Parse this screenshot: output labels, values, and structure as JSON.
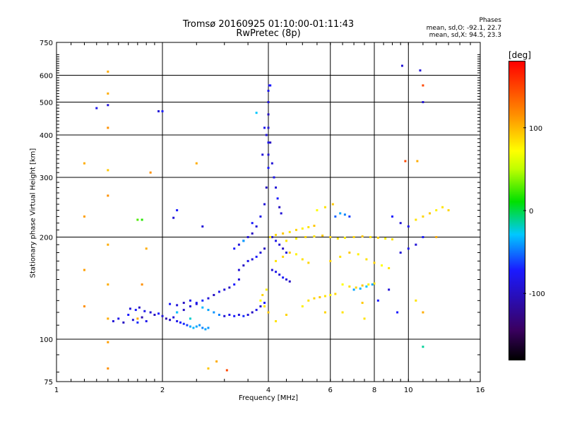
{
  "chart_data": {
    "type": "scatter",
    "title": "Tromsø 20160925 01:10:00-01:11:43",
    "subtitle": "RwPretec (8p)",
    "xlabel": "Frequency [MHz]",
    "ylabel": "Stationary phase Virtual Height [km]",
    "xscale": "log",
    "yscale": "log",
    "xlim": [
      1,
      16
    ],
    "ylim": [
      75,
      750
    ],
    "x_ticks": [
      1,
      2,
      4,
      6,
      8,
      10,
      16
    ],
    "y_ticks": [
      75,
      100,
      200,
      300,
      400,
      500,
      600,
      750
    ],
    "grid": true,
    "color_scale": {
      "unit": "[deg]",
      "range": [
        -180,
        180
      ],
      "ticks": [
        -100,
        0,
        100
      ]
    },
    "phases": {
      "heading": "Phases",
      "o_mode": "mean, sd,O: -92.1, 22.7",
      "x_mode": "mean, sd,X:  94.5, 23.3"
    },
    "points": [
      [
        1.45,
        113,
        -110
      ],
      [
        1.5,
        115,
        -105
      ],
      [
        1.55,
        112,
        -115
      ],
      [
        1.6,
        118,
        -100
      ],
      [
        1.65,
        114,
        -110
      ],
      [
        1.7,
        112,
        -95
      ],
      [
        1.75,
        116,
        -120
      ],
      [
        1.8,
        113,
        -105
      ],
      [
        1.62,
        123,
        -110
      ],
      [
        1.68,
        122,
        -100
      ],
      [
        1.72,
        124,
        -115
      ],
      [
        1.78,
        121,
        -105
      ],
      [
        1.85,
        120,
        -110
      ],
      [
        1.9,
        118,
        -115
      ],
      [
        1.95,
        119,
        -100
      ],
      [
        2.0,
        117,
        -110
      ],
      [
        2.05,
        115,
        -120
      ],
      [
        2.1,
        114,
        -115
      ],
      [
        2.15,
        116,
        -110
      ],
      [
        2.2,
        113,
        -105
      ],
      [
        2.25,
        112,
        -100
      ],
      [
        2.3,
        111,
        -95
      ],
      [
        2.35,
        110,
        -90
      ],
      [
        2.4,
        109,
        -60
      ],
      [
        2.45,
        108,
        -55
      ],
      [
        2.5,
        109,
        -60
      ],
      [
        2.55,
        110,
        -65
      ],
      [
        2.6,
        108,
        -70
      ],
      [
        2.65,
        107,
        -60
      ],
      [
        2.7,
        108,
        -65
      ],
      [
        2.2,
        120,
        -110
      ],
      [
        2.3,
        122,
        -115
      ],
      [
        2.4,
        125,
        -110
      ],
      [
        2.5,
        128,
        -100
      ],
      [
        2.6,
        130,
        -95
      ],
      [
        2.7,
        132,
        -110
      ],
      [
        2.8,
        135,
        -115
      ],
      [
        2.9,
        138,
        -105
      ],
      [
        3.0,
        140,
        -110
      ],
      [
        3.1,
        142,
        -115
      ],
      [
        3.2,
        145,
        -100
      ],
      [
        3.3,
        150,
        -110
      ],
      [
        2.1,
        127,
        -100
      ],
      [
        2.2,
        126,
        -110
      ],
      [
        2.3,
        128,
        -115
      ],
      [
        2.4,
        130,
        -105
      ],
      [
        2.5,
        127,
        -110
      ],
      [
        2.6,
        124,
        -55
      ],
      [
        2.7,
        122,
        -60
      ],
      [
        2.8,
        120,
        -65
      ],
      [
        2.9,
        118,
        -70
      ],
      [
        3.0,
        117,
        -110
      ],
      [
        3.1,
        118,
        -105
      ],
      [
        3.2,
        117,
        -100
      ],
      [
        3.3,
        118,
        -110
      ],
      [
        3.4,
        117,
        -95
      ],
      [
        3.5,
        118,
        -110
      ],
      [
        3.6,
        120,
        -115
      ],
      [
        3.7,
        122,
        -105
      ],
      [
        3.8,
        125,
        -110
      ],
      [
        3.9,
        128,
        -100
      ],
      [
        3.3,
        160,
        -110
      ],
      [
        3.4,
        165,
        -115
      ],
      [
        3.5,
        170,
        -105
      ],
      [
        3.6,
        172,
        -110
      ],
      [
        3.7,
        175,
        -100
      ],
      [
        3.8,
        180,
        -110
      ],
      [
        3.9,
        185,
        -115
      ],
      [
        3.2,
        185,
        -100
      ],
      [
        3.3,
        190,
        -110
      ],
      [
        3.4,
        195,
        -105
      ],
      [
        3.5,
        200,
        -110
      ],
      [
        3.6,
        205,
        -115
      ],
      [
        3.7,
        215,
        -110
      ],
      [
        3.8,
        230,
        -105
      ],
      [
        3.9,
        250,
        -110
      ],
      [
        3.95,
        280,
        -115
      ],
      [
        4.0,
        320,
        -100
      ],
      [
        4.0,
        350,
        -110
      ],
      [
        4.0,
        380,
        -105
      ],
      [
        4.0,
        420,
        -110
      ],
      [
        4.0,
        460,
        -115
      ],
      [
        4.0,
        500,
        -110
      ],
      [
        4.0,
        540,
        -105
      ],
      [
        4.02,
        560,
        -110
      ],
      [
        4.05,
        560,
        -100
      ],
      [
        3.95,
        400,
        -110
      ],
      [
        4.05,
        380,
        -115
      ],
      [
        4.1,
        330,
        -110
      ],
      [
        4.15,
        300,
        -105
      ],
      [
        4.2,
        280,
        -110
      ],
      [
        4.25,
        260,
        -100
      ],
      [
        4.3,
        245,
        -115
      ],
      [
        4.35,
        235,
        -110
      ],
      [
        3.85,
        350,
        -110
      ],
      [
        3.9,
        420,
        -105
      ],
      [
        4.1,
        200,
        -110
      ],
      [
        4.2,
        195,
        -105
      ],
      [
        4.3,
        190,
        -110
      ],
      [
        4.4,
        185,
        -115
      ],
      [
        4.5,
        180,
        -110
      ],
      [
        4.1,
        160,
        -110
      ],
      [
        4.2,
        158,
        -105
      ],
      [
        4.3,
        155,
        -110
      ],
      [
        4.4,
        152,
        -100
      ],
      [
        4.5,
        150,
        -110
      ],
      [
        4.6,
        148,
        -115
      ],
      [
        3.8,
        130,
        80
      ],
      [
        3.9,
        125,
        90
      ],
      [
        4.0,
        120,
        100
      ],
      [
        3.85,
        135,
        95
      ],
      [
        3.95,
        140,
        85
      ],
      [
        4.05,
        200,
        90
      ],
      [
        4.2,
        203,
        95
      ],
      [
        4.4,
        205,
        100
      ],
      [
        4.6,
        207,
        90
      ],
      [
        4.8,
        210,
        95
      ],
      [
        5.0,
        212,
        85
      ],
      [
        5.2,
        214,
        90
      ],
      [
        5.4,
        216,
        100
      ],
      [
        4.5,
        195,
        90
      ],
      [
        4.8,
        198,
        85
      ],
      [
        5.1,
        200,
        95
      ],
      [
        5.4,
        201,
        90
      ],
      [
        5.7,
        202,
        100
      ],
      [
        6.0,
        200,
        95
      ],
      [
        6.3,
        198,
        90
      ],
      [
        6.6,
        199,
        85
      ],
      [
        7.0,
        200,
        95
      ],
      [
        7.4,
        201,
        100
      ],
      [
        7.8,
        200,
        90
      ],
      [
        8.2,
        199,
        95
      ],
      [
        8.6,
        198,
        85
      ],
      [
        9.0,
        197,
        90
      ],
      [
        5.2,
        130,
        90
      ],
      [
        5.4,
        132,
        95
      ],
      [
        5.6,
        133,
        100
      ],
      [
        5.8,
        134,
        90
      ],
      [
        6.0,
        135,
        85
      ],
      [
        6.2,
        136,
        95
      ],
      [
        4.2,
        170,
        90
      ],
      [
        4.4,
        175,
        95
      ],
      [
        4.6,
        180,
        100
      ],
      [
        4.8,
        178,
        85
      ],
      [
        5.0,
        172,
        90
      ],
      [
        5.2,
        168,
        95
      ],
      [
        6.5,
        145,
        80
      ],
      [
        6.8,
        143,
        90
      ],
      [
        7.1,
        142,
        95
      ],
      [
        7.4,
        144,
        100
      ],
      [
        7.7,
        145,
        85
      ],
      [
        8.0,
        146,
        90
      ],
      [
        7.0,
        140,
        -60
      ],
      [
        7.3,
        141,
        -55
      ],
      [
        7.6,
        143,
        -50
      ],
      [
        7.9,
        145,
        -60
      ],
      [
        6.0,
        170,
        95
      ],
      [
        6.4,
        175,
        90
      ],
      [
        6.8,
        180,
        100
      ],
      [
        7.2,
        178,
        85
      ],
      [
        7.6,
        172,
        90
      ],
      [
        8.0,
        168,
        95
      ],
      [
        8.4,
        165,
        80
      ],
      [
        8.8,
        162,
        90
      ],
      [
        6.2,
        230,
        -80
      ],
      [
        6.4,
        235,
        -60
      ],
      [
        6.6,
        233,
        -70
      ],
      [
        6.8,
        230,
        -90
      ],
      [
        5.5,
        240,
        80
      ],
      [
        5.8,
        245,
        90
      ],
      [
        6.1,
        250,
        100
      ],
      [
        9.0,
        230,
        -100
      ],
      [
        9.5,
        220,
        -110
      ],
      [
        10.0,
        215,
        -105
      ],
      [
        10.5,
        225,
        90
      ],
      [
        11.0,
        230,
        95
      ],
      [
        11.5,
        235,
        100
      ],
      [
        12.0,
        240,
        85
      ],
      [
        12.5,
        245,
        90
      ],
      [
        13.0,
        240,
        95
      ],
      [
        11.0,
        200,
        -100
      ],
      [
        10.5,
        190,
        -110
      ],
      [
        10.0,
        185,
        -105
      ],
      [
        9.5,
        180,
        -110
      ],
      [
        3.7,
        465,
        -50
      ],
      [
        9.6,
        640,
        -110
      ],
      [
        10.8,
        620,
        -110
      ],
      [
        11.0,
        500,
        -110
      ],
      [
        1.4,
        490,
        -110
      ],
      [
        1.3,
        480,
        -105
      ],
      [
        1.95,
        470,
        -110
      ],
      [
        2.0,
        470,
        -100
      ],
      [
        11.0,
        560,
        150
      ],
      [
        1.4,
        615,
        110
      ],
      [
        1.4,
        530,
        110
      ],
      [
        1.4,
        420,
        120
      ],
      [
        1.2,
        330,
        110
      ],
      [
        1.4,
        315,
        100
      ],
      [
        1.85,
        310,
        120
      ],
      [
        2.5,
        330,
        110
      ],
      [
        1.4,
        265,
        120
      ],
      [
        1.2,
        230,
        115
      ],
      [
        1.4,
        190,
        110
      ],
      [
        1.2,
        160,
        115
      ],
      [
        1.4,
        145,
        110
      ],
      [
        1.2,
        125,
        120
      ],
      [
        1.4,
        115,
        110
      ],
      [
        1.4,
        98,
        115
      ],
      [
        1.4,
        82,
        120
      ],
      [
        2.7,
        82,
        100
      ],
      [
        2.85,
        86,
        110
      ],
      [
        3.05,
        81,
        150
      ],
      [
        1.7,
        225,
        20
      ],
      [
        1.75,
        225,
        10
      ],
      [
        2.15,
        228,
        -110
      ],
      [
        2.2,
        240,
        -100
      ],
      [
        2.6,
        215,
        -110
      ],
      [
        3.4,
        195,
        -60
      ],
      [
        3.6,
        220,
        -100
      ],
      [
        8.2,
        130,
        -100
      ],
      [
        8.8,
        140,
        -110
      ],
      [
        9.3,
        120,
        -100
      ],
      [
        10.5,
        130,
        90
      ],
      [
        11.0,
        120,
        110
      ],
      [
        11.0,
        95,
        -30
      ],
      [
        5.8,
        120,
        95
      ],
      [
        7.4,
        128,
        100
      ],
      [
        7.5,
        115,
        90
      ],
      [
        6.5,
        120,
        90
      ],
      [
        5.0,
        125,
        85
      ],
      [
        4.2,
        113,
        90
      ],
      [
        4.5,
        118,
        95
      ],
      [
        1.8,
        185,
        110
      ],
      [
        1.75,
        145,
        120
      ],
      [
        1.7,
        115,
        110
      ],
      [
        2.2,
        120,
        -50
      ],
      [
        2.4,
        115,
        -40
      ],
      [
        9.8,
        335,
        150
      ],
      [
        10.6,
        335,
        110
      ],
      [
        12.0,
        200,
        110
      ]
    ]
  }
}
